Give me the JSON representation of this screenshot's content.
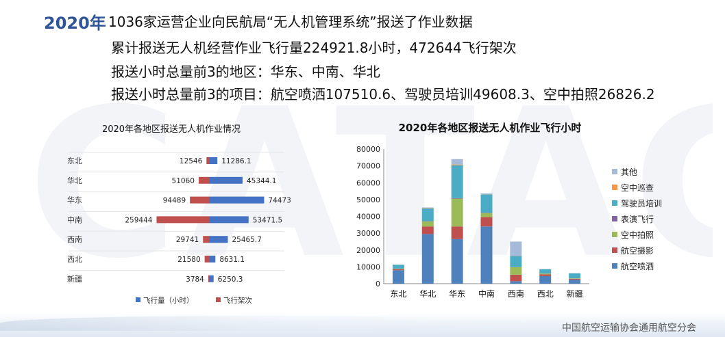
{
  "header": {
    "year": "2020年",
    "line1": "1036家运营企业向民航局“无人机管理系统”报送了作业数据",
    "line2": "累计报送无人机经营作业飞行量224921.8小时，472644飞行架次",
    "line3": "报送小时总量前3的地区：华东、中南、华北",
    "line4": "报送小时总量前3的项目：航空喷洒107510.6、驾驶员培训49608.3、空中拍照26826.2"
  },
  "watermark": "CATAG",
  "footer": "中国航空运输协会通用航空分会",
  "chart_data": [
    {
      "type": "bar",
      "orientation": "horizontal",
      "title": "2020年各地区报送无人机作业情况",
      "categories": [
        "东北",
        "华北",
        "华东",
        "中南",
        "西南",
        "西北",
        "新疆"
      ],
      "series": [
        {
          "name": "飞行量（小时）",
          "color": "#4472c4",
          "values": [
            11286.1,
            45344.1,
            74473,
            53471.5,
            25465.7,
            8631.1,
            6250.3
          ],
          "labels": [
            "11286.1",
            "45344.1",
            "74473",
            "53471.5",
            "25465.7",
            "8631.1",
            "6250.3"
          ]
        },
        {
          "name": "飞行架次",
          "color": "#c0504d",
          "values": [
            12546,
            51060,
            94489,
            259444,
            29741,
            21580,
            3784
          ],
          "labels": [
            "12546",
            "51060",
            "94489",
            "259444",
            "29741",
            "21580",
            "3784"
          ]
        }
      ],
      "legend": "bottom"
    },
    {
      "type": "bar",
      "stacked": true,
      "title": "2020年各地区报送无人机作业飞行小时",
      "categories": [
        "东北",
        "华北",
        "华东",
        "中南",
        "西南",
        "西北",
        "新疆"
      ],
      "ylim": [
        0,
        80000
      ],
      "yticks": [
        "0",
        "10000",
        "20000",
        "30000",
        "40000",
        "50000",
        "60000",
        "70000",
        "80000"
      ],
      "legend": "right",
      "series": [
        {
          "name": "航空喷洒",
          "color": "#4f81bd",
          "values": [
            8000,
            29500,
            26500,
            34000,
            1500,
            4500,
            2400
          ]
        },
        {
          "name": "航空摄影",
          "color": "#c0504d",
          "values": [
            600,
            4500,
            7500,
            5500,
            3800,
            1000,
            500
          ]
        },
        {
          "name": "空中拍照",
          "color": "#9bbb59",
          "values": [
            300,
            3000,
            16500,
            2500,
            4500,
            500,
            300
          ]
        },
        {
          "name": "表演飞行",
          "color": "#8064a2",
          "values": [
            50,
            200,
            300,
            200,
            100,
            50,
            50
          ]
        },
        {
          "name": "驾驶员培训",
          "color": "#4bacc6",
          "values": [
            2300,
            7500,
            19500,
            10800,
            6600,
            2500,
            2900
          ]
        },
        {
          "name": "空中巡查",
          "color": "#f79646",
          "values": [
            30,
            300,
            500,
            100,
            100,
            50,
            50
          ]
        },
        {
          "name": "其他",
          "color": "#a5b9d9",
          "values": [
            50,
            300,
            3200,
            500,
            8400,
            100,
            100
          ]
        }
      ]
    }
  ]
}
